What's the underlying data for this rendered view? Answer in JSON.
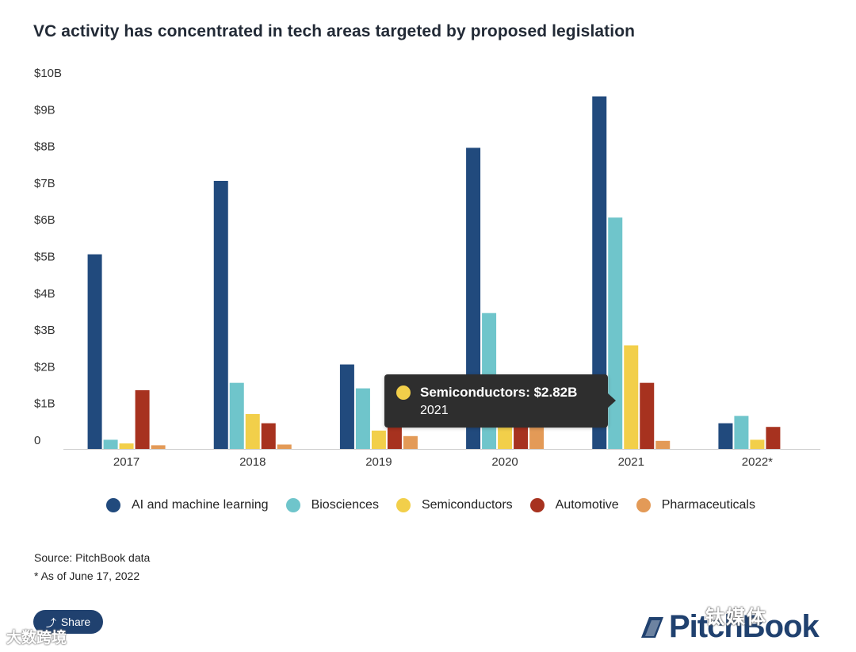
{
  "title": "VC activity has concentrated in tech areas targeted by proposed legislation",
  "chart_data": {
    "type": "bar",
    "title": "VC activity has concentrated in tech areas targeted by proposed legislation",
    "xlabel": "",
    "ylabel": "",
    "ylim": [
      0,
      10
    ],
    "y_ticks": [
      "0",
      "$1B",
      "$2B",
      "$3B",
      "$4B",
      "$5B",
      "$6B",
      "$7B",
      "$8B",
      "$9B",
      "$10B"
    ],
    "categories": [
      "2017",
      "2018",
      "2019",
      "2020",
      "2021",
      "2022*"
    ],
    "legend_position": "bottom",
    "grid": false,
    "series": [
      {
        "name": "AI and machine learning",
        "color": "#214a7d",
        "values": [
          5.3,
          7.3,
          2.3,
          8.2,
          9.6,
          0.7
        ]
      },
      {
        "name": "Biosciences",
        "color": "#6fc5cb",
        "values": [
          0.25,
          1.8,
          1.65,
          3.7,
          6.3,
          0.9
        ]
      },
      {
        "name": "Semiconductors",
        "color": "#f2cf4a",
        "values": [
          0.15,
          0.95,
          0.5,
          1.2,
          2.82,
          0.25
        ]
      },
      {
        "name": "Automotive",
        "color": "#a7321f",
        "values": [
          1.6,
          0.7,
          1.0,
          1.1,
          1.8,
          0.6
        ]
      },
      {
        "name": "Pharmaceuticals",
        "color": "#e39a57",
        "values": [
          0.1,
          0.12,
          0.35,
          1.3,
          0.22,
          0
        ]
      }
    ]
  },
  "tooltip": {
    "series": "Semiconductors: $2.82B",
    "year": "2021",
    "color": "#f2cf4a"
  },
  "source": "Source: PitchBook data",
  "note": "* As of June 17, 2022",
  "share_label": "Share",
  "logo_text": "PitchBook",
  "watermark_left": "大数跨境",
  "watermark_right": "钛媒体"
}
